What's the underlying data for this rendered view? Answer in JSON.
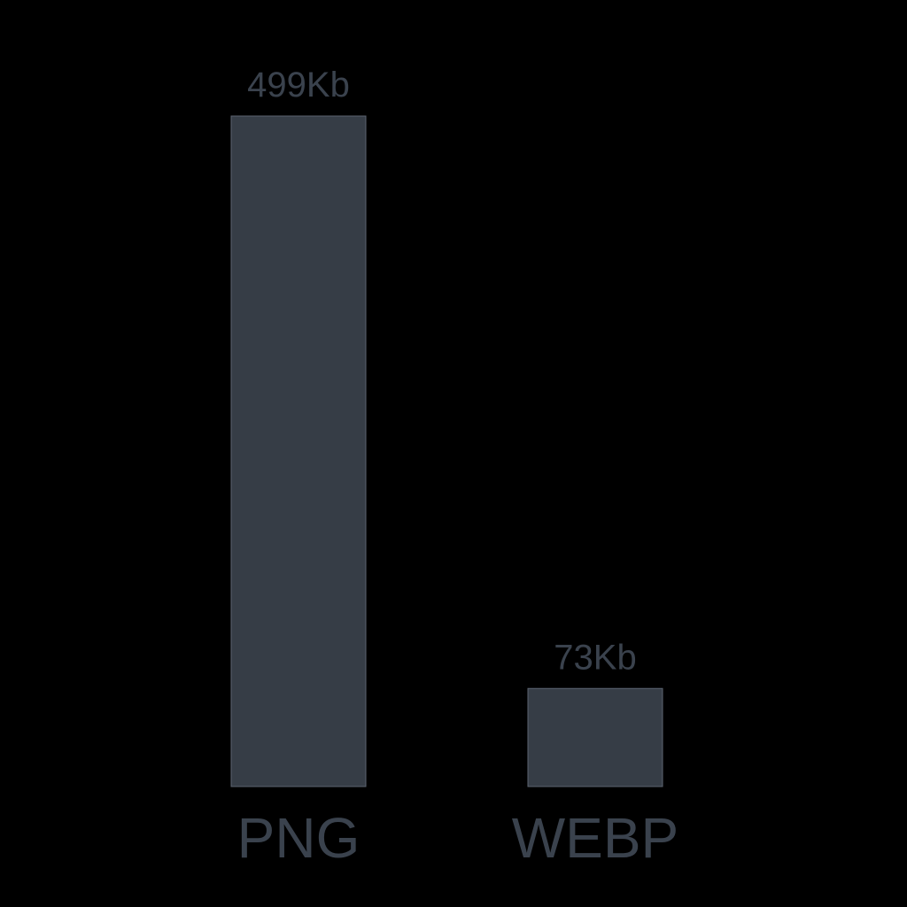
{
  "chart_data": {
    "type": "bar",
    "categories": [
      "PNG",
      "WEBP"
    ],
    "values": [
      499,
      73
    ],
    "value_labels": [
      "499Kb",
      "73Kb"
    ],
    "unit": "Kb",
    "title": "",
    "xlabel": "",
    "ylabel": "",
    "ylim": [
      0,
      499
    ],
    "grid": false,
    "colors": {
      "background": "#000000",
      "bar_fill": "#363d46",
      "bar_stroke": "#5c6470",
      "text": "#3a424d"
    }
  }
}
